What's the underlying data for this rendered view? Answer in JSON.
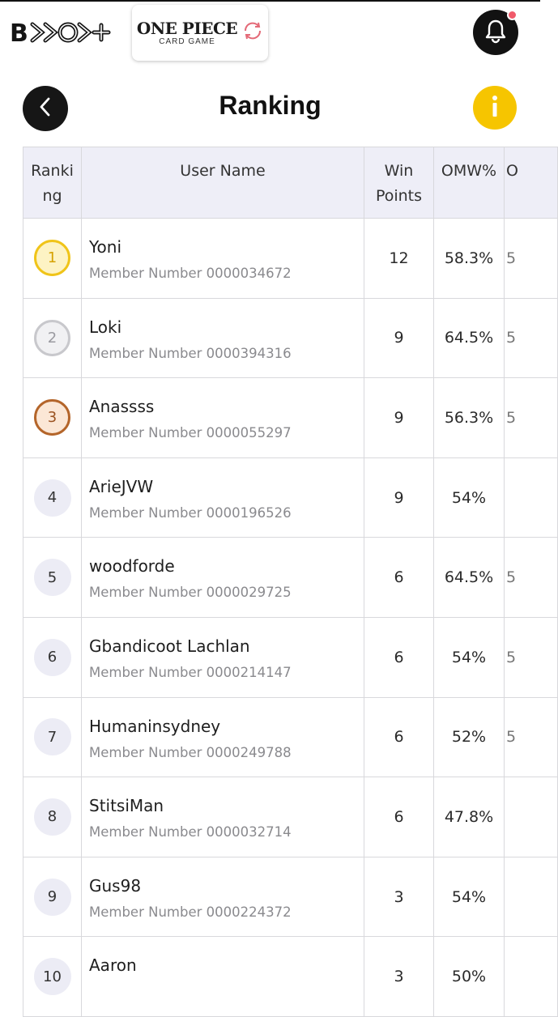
{
  "header": {
    "brand": "B",
    "game_title": "ONE PIECE",
    "game_subtitle": "CARD GAME",
    "notification_icon": "bell-icon",
    "notification_badge_color": "#f05a6a"
  },
  "page": {
    "title": "Ranking",
    "back_icon": "chevron-left-icon",
    "info_icon": "info-icon",
    "info_label": "i",
    "accent": "#f6c500"
  },
  "table": {
    "headers": {
      "rank": "Ranking",
      "user": "User Name",
      "win_points": "Win Points",
      "omw": "OMW%",
      "cut": "O"
    },
    "member_prefix": "Member Number",
    "rows": [
      {
        "rank": "1",
        "name": "Yoni",
        "member": "Member Number 0000034672",
        "win_points": "12",
        "omw": "58.3%",
        "cut": "5"
      },
      {
        "rank": "2",
        "name": "Loki",
        "member": "Member Number 0000394316",
        "win_points": "9",
        "omw": "64.5%",
        "cut": "5"
      },
      {
        "rank": "3",
        "name": "Anassss",
        "member": "Member Number 0000055297",
        "win_points": "9",
        "omw": "56.3%",
        "cut": "5"
      },
      {
        "rank": "4",
        "name": "ArieJVW",
        "member": "Member Number 0000196526",
        "win_points": "9",
        "omw": "54%",
        "cut": ""
      },
      {
        "rank": "5",
        "name": "woodforde",
        "member": "Member Number 0000029725",
        "win_points": "6",
        "omw": "64.5%",
        "cut": "5"
      },
      {
        "rank": "6",
        "name": "Gbandicoot Lachlan",
        "member": "Member Number 0000214147",
        "win_points": "6",
        "omw": "54%",
        "cut": "5"
      },
      {
        "rank": "7",
        "name": "Humaninsydney",
        "member": "Member Number 0000249788",
        "win_points": "6",
        "omw": "52%",
        "cut": "5"
      },
      {
        "rank": "8",
        "name": "StitsiMan",
        "member": "Member Number 0000032714",
        "win_points": "6",
        "omw": "47.8%",
        "cut": ""
      },
      {
        "rank": "9",
        "name": "Gus98",
        "member": "Member Number 0000224372",
        "win_points": "3",
        "omw": "54%",
        "cut": ""
      },
      {
        "rank": "10",
        "name": "Aaron",
        "member": "",
        "win_points": "3",
        "omw": "50%",
        "cut": ""
      }
    ]
  }
}
